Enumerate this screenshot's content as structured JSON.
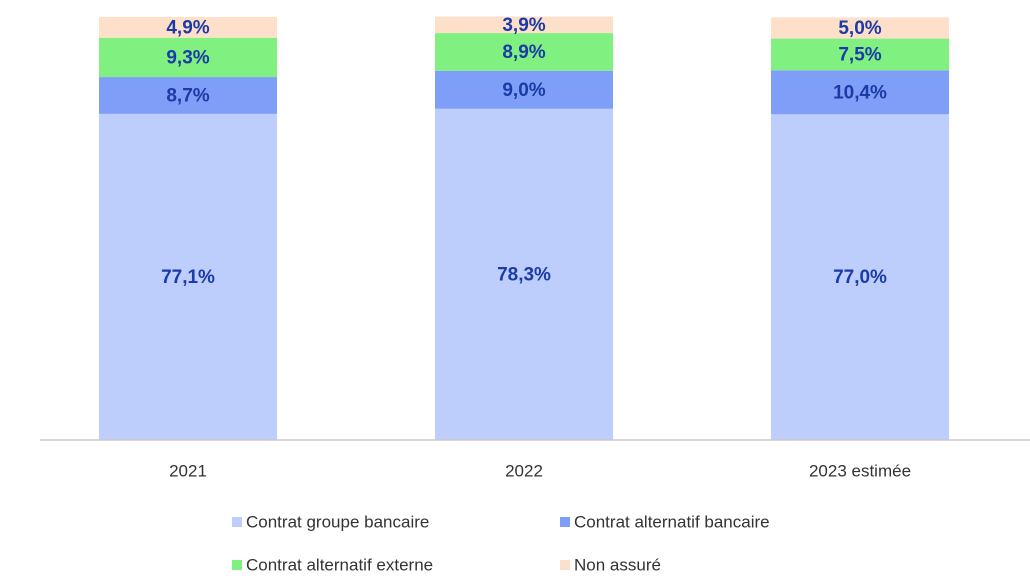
{
  "chart_data": {
    "type": "stacked_bar",
    "categories": [
      "2021",
      "2022",
      "2023 estimée"
    ],
    "series": [
      {
        "name": "Contrat groupe bancaire",
        "color": "#bdcefc",
        "values": [
          77.1,
          78.3,
          77.0
        ],
        "value_labels": [
          "77,1%",
          "78,3%",
          "77,0%"
        ]
      },
      {
        "name": "Contrat alternatif bancaire",
        "color": "#7f9ef8",
        "values": [
          8.7,
          9.0,
          10.4
        ],
        "value_labels": [
          "8,7%",
          "9,0%",
          "10,4%"
        ]
      },
      {
        "name": "Contrat alternatif externe",
        "color": "#80f080",
        "values": [
          9.3,
          8.9,
          7.5
        ],
        "value_labels": [
          "9,3%",
          "8,9%",
          "7,5%"
        ]
      },
      {
        "name": "Non assuré",
        "color": "#fddfca",
        "values": [
          4.9,
          3.9,
          5.0
        ],
        "value_labels": [
          "4,9%",
          "3,9%",
          "5,0%"
        ]
      }
    ],
    "ylim": [
      0,
      100
    ],
    "legend": "bottom"
  }
}
